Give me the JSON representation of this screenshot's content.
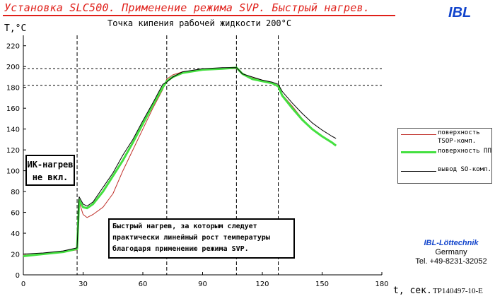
{
  "header": {
    "title": "Установка SLC500. Применение режима SVP. Быстрый нагрев.",
    "brand": "IBL",
    "subtitle": "Точка кипения рабочей жидкости 200°C"
  },
  "colors": {
    "header_red": "#e0201a",
    "brand_blue": "#1144cc",
    "surface_red": "#c0302a",
    "pp_green": "#44e040",
    "lead_black": "#000000"
  },
  "annotations": {
    "ir_line1": "ИК-нагрев",
    "ir_line2": "не вкл.",
    "note_line1": "Быстрый нагрев, за которым следует",
    "note_line2": "практически линейный рост температуры",
    "note_line3": "благодаря применению режима SVP."
  },
  "company": {
    "name": "IBL-Löttechnik",
    "country": "Germany",
    "phone": "Tel. +49-8231-32052"
  },
  "doc_id": "TP140497-10-E",
  "chart_data": {
    "type": "line",
    "xlabel": "t, сек.",
    "ylabel": "T,°C",
    "xlim": [
      0,
      180
    ],
    "ylim": [
      0,
      230
    ],
    "xticks": [
      "0",
      "30",
      "60",
      "90",
      "120",
      "150",
      "180"
    ],
    "yticks": [
      "0",
      "20",
      "40",
      "60",
      "80",
      "100",
      "120",
      "140",
      "160",
      "180",
      "200",
      "220"
    ],
    "grid": false,
    "ref_lines": {
      "vertical": [
        27,
        72,
        107,
        128
      ],
      "horizontal": [
        182,
        198
      ]
    },
    "legend_position": "right",
    "series": [
      {
        "name": "поверхность TSOP-комп.",
        "color": "#c0302a",
        "width": 1,
        "points": [
          [
            0,
            19
          ],
          [
            10,
            20
          ],
          [
            20,
            22
          ],
          [
            27,
            24
          ],
          [
            28,
            70
          ],
          [
            30,
            58
          ],
          [
            32,
            55
          ],
          [
            35,
            58
          ],
          [
            40,
            65
          ],
          [
            45,
            78
          ],
          [
            50,
            100
          ],
          [
            55,
            120
          ],
          [
            60,
            140
          ],
          [
            65,
            160
          ],
          [
            70,
            178
          ],
          [
            72,
            188
          ],
          [
            75,
            192
          ],
          [
            80,
            195
          ],
          [
            90,
            197
          ],
          [
            100,
            198
          ],
          [
            107,
            198
          ],
          [
            110,
            193
          ],
          [
            115,
            189
          ],
          [
            120,
            187
          ],
          [
            125,
            184
          ],
          [
            128,
            182
          ],
          [
            130,
            173
          ],
          [
            135,
            162
          ],
          [
            140,
            150
          ],
          [
            145,
            140
          ],
          [
            150,
            133
          ],
          [
            155,
            127
          ],
          [
            157,
            125
          ]
        ]
      },
      {
        "name": "поверхность ПП",
        "color": "#44e040",
        "width": 3,
        "points": [
          [
            0,
            18
          ],
          [
            10,
            20
          ],
          [
            20,
            22
          ],
          [
            27,
            25
          ],
          [
            28,
            72
          ],
          [
            30,
            65
          ],
          [
            32,
            64
          ],
          [
            35,
            68
          ],
          [
            40,
            80
          ],
          [
            45,
            95
          ],
          [
            50,
            110
          ],
          [
            55,
            127
          ],
          [
            60,
            145
          ],
          [
            65,
            163
          ],
          [
            70,
            180
          ],
          [
            72,
            186
          ],
          [
            75,
            190
          ],
          [
            80,
            194
          ],
          [
            90,
            197
          ],
          [
            100,
            198
          ],
          [
            107,
            199
          ],
          [
            110,
            193
          ],
          [
            115,
            188
          ],
          [
            120,
            186
          ],
          [
            125,
            184
          ],
          [
            128,
            181
          ],
          [
            130,
            172
          ],
          [
            135,
            160
          ],
          [
            140,
            149
          ],
          [
            145,
            140
          ],
          [
            150,
            133
          ],
          [
            155,
            127
          ],
          [
            157,
            124
          ]
        ]
      },
      {
        "name": "вывод SO-комп.",
        "color": "#000000",
        "width": 1,
        "points": [
          [
            0,
            20
          ],
          [
            10,
            21
          ],
          [
            20,
            23
          ],
          [
            27,
            26
          ],
          [
            28,
            75
          ],
          [
            30,
            68
          ],
          [
            32,
            66
          ],
          [
            35,
            70
          ],
          [
            40,
            84
          ],
          [
            45,
            98
          ],
          [
            50,
            115
          ],
          [
            55,
            130
          ],
          [
            60,
            148
          ],
          [
            65,
            165
          ],
          [
            70,
            183
          ],
          [
            72,
            185
          ],
          [
            75,
            190
          ],
          [
            80,
            195
          ],
          [
            90,
            198
          ],
          [
            100,
            199
          ],
          [
            107,
            199
          ],
          [
            110,
            193
          ],
          [
            115,
            190
          ],
          [
            120,
            187
          ],
          [
            125,
            185
          ],
          [
            128,
            183
          ],
          [
            130,
            176
          ],
          [
            135,
            165
          ],
          [
            140,
            155
          ],
          [
            145,
            146
          ],
          [
            150,
            139
          ],
          [
            155,
            133
          ],
          [
            157,
            131
          ]
        ]
      }
    ]
  }
}
